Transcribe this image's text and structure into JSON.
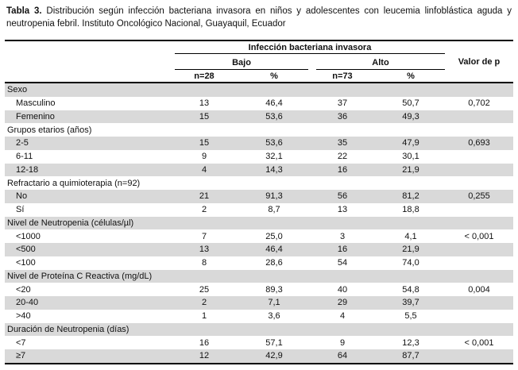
{
  "title": {
    "label": "Tabla 3.",
    "text": "Distribución según infección bacteriana invasora en niños y adolescentes con leucemia linfoblástica aguda y neutropenia febril. Instituto Oncológico Nacional, Guayaquil, Ecuador"
  },
  "table": {
    "group_header": "Infección bacteriana invasora",
    "col_groups": [
      {
        "label": "Bajo"
      },
      {
        "label": "Alto"
      }
    ],
    "sub_headers": [
      "n=28",
      "%",
      "n=73",
      "%"
    ],
    "p_header": "Valor de p",
    "colors": {
      "stripe": "#d9d9d9",
      "rule": "#000000",
      "text": "#111111"
    },
    "rows": [
      {
        "type": "section",
        "label": "Sexo"
      },
      {
        "type": "data",
        "label": "Masculino",
        "values": [
          "13",
          "46,4",
          "37",
          "50,7"
        ],
        "p": "0,702"
      },
      {
        "type": "data",
        "label": "Femenino",
        "values": [
          "15",
          "53,6",
          "36",
          "49,3"
        ],
        "p": ""
      },
      {
        "type": "section",
        "label": "Grupos etarios (años)"
      },
      {
        "type": "data",
        "label": "2-5",
        "values": [
          "15",
          "53,6",
          "35",
          "47,9"
        ],
        "p": "0,693"
      },
      {
        "type": "data",
        "label": "6-11",
        "values": [
          "9",
          "32,1",
          "22",
          "30,1"
        ],
        "p": ""
      },
      {
        "type": "data",
        "label": "12-18",
        "values": [
          "4",
          "14,3",
          "16",
          "21,9"
        ],
        "p": ""
      },
      {
        "type": "section",
        "label": "Refractario a quimioterapia (n=92)"
      },
      {
        "type": "data",
        "label": "No",
        "values": [
          "21",
          "91,3",
          "56",
          "81,2"
        ],
        "p": "0,255"
      },
      {
        "type": "data",
        "label": "Sí",
        "values": [
          "2",
          "8,7",
          "13",
          "18,8"
        ],
        "p": ""
      },
      {
        "type": "section",
        "label": "Nivel de Neutropenia (células/µl)"
      },
      {
        "type": "data",
        "label": "<1000",
        "values": [
          "7",
          "25,0",
          "3",
          "4,1"
        ],
        "p": "< 0,001"
      },
      {
        "type": "data",
        "label": "<500",
        "values": [
          "13",
          "46,4",
          "16",
          "21,9"
        ],
        "p": ""
      },
      {
        "type": "data",
        "label": "<100",
        "values": [
          "8",
          "28,6",
          "54",
          "74,0"
        ],
        "p": ""
      },
      {
        "type": "section",
        "label": "Nivel de Proteína C Reactiva (mg/dL)"
      },
      {
        "type": "data",
        "label": "<20",
        "values": [
          "25",
          "89,3",
          "40",
          "54,8"
        ],
        "p": "0,004"
      },
      {
        "type": "data",
        "label": "20-40",
        "values": [
          "2",
          "7,1",
          "29",
          "39,7"
        ],
        "p": ""
      },
      {
        "type": "data",
        "label": ">40",
        "values": [
          "1",
          "3,6",
          "4",
          "5,5"
        ],
        "p": ""
      },
      {
        "type": "section",
        "label": "Duración de Neutropenia (días)"
      },
      {
        "type": "data",
        "label": "<7",
        "values": [
          "16",
          "57,1",
          "9",
          "12,3"
        ],
        "p": "< 0,001"
      },
      {
        "type": "data",
        "label": "≥7",
        "values": [
          "12",
          "42,9",
          "64",
          "87,7"
        ],
        "p": ""
      }
    ]
  }
}
